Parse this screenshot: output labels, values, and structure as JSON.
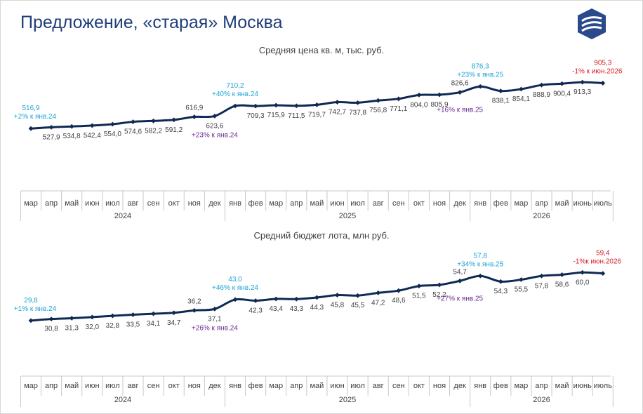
{
  "page": {
    "title": "Предложение, «старая» Москва"
  },
  "colors": {
    "line": "#0f2a52",
    "cyan": "#1ba3d6",
    "purple": "#6a2b8f",
    "red": "#d6202a",
    "axis": "#c8c8c8",
    "text": "#404040"
  },
  "chart_data": [
    {
      "type": "line",
      "title": "Средняя цена кв. м, тыс. руб.",
      "categories": [
        "мар",
        "апр",
        "май",
        "июн",
        "июл",
        "авг",
        "сен",
        "окт",
        "ноя",
        "дек",
        "янв",
        "фев",
        "мар",
        "апр",
        "май",
        "июн",
        "июл",
        "авг",
        "сен",
        "окт",
        "ноя",
        "дек",
        "янв",
        "фев",
        "мар",
        "апр",
        "май",
        "июнь",
        "июль"
      ],
      "years": [
        {
          "label": "2024",
          "from": 0,
          "to": 9
        },
        {
          "label": "2025",
          "from": 10,
          "to": 21
        },
        {
          "label": "2026",
          "from": 22,
          "to": 28
        }
      ],
      "values": [
        516.9,
        527.9,
        534.8,
        542.4,
        554.0,
        574.6,
        582.2,
        591.2,
        616.9,
        623.6,
        710.2,
        709.3,
        715.9,
        711.5,
        719.7,
        742.7,
        737.8,
        756.8,
        771.1,
        804.0,
        805.9,
        826.6,
        876.3,
        838.1,
        854.1,
        888.9,
        900.4,
        913.3,
        905.3
      ],
      "labels": [
        "516,9",
        "527,9",
        "534,8",
        "542,4",
        "554,0",
        "574,6",
        "582,2",
        "591,2",
        "616,9",
        "623,6",
        "710,2",
        "709,3",
        "715,9",
        "711,5",
        "719,7",
        "742,7",
        "737,8",
        "756,8",
        "771,1",
        "804,0",
        "805,9",
        "826,6",
        "876,3",
        "838,1",
        "854,1",
        "888,9",
        "900,4",
        "913,3",
        "905,3"
      ],
      "annotations": [
        {
          "index": 0,
          "text": "+2% к янв.24",
          "color": "cyan"
        },
        {
          "index": 9,
          "text": "+23% к янв.24",
          "color": "purple"
        },
        {
          "index": 10,
          "text": "+40% к янв.24",
          "color": "cyan"
        },
        {
          "index": 21,
          "text": "+16% к янв.25",
          "color": "purple"
        },
        {
          "index": 22,
          "text": "+23% к янв.25",
          "color": "cyan"
        },
        {
          "index": 28,
          "text": "-1% к июн.2026",
          "color": "red"
        }
      ]
    },
    {
      "type": "line",
      "title": "Средний бюджет лота, млн руб.",
      "categories": [
        "мар",
        "апр",
        "май",
        "июн",
        "июл",
        "авг",
        "сен",
        "окт",
        "ноя",
        "дек",
        "янв",
        "фев",
        "мар",
        "апр",
        "май",
        "июн",
        "июл",
        "авг",
        "сен",
        "окт",
        "ноя",
        "дек",
        "янв",
        "фев",
        "мар",
        "апр",
        "май",
        "июнь",
        "июль"
      ],
      "years": [
        {
          "label": "2024",
          "from": 0,
          "to": 9
        },
        {
          "label": "2025",
          "from": 10,
          "to": 21
        },
        {
          "label": "2026",
          "from": 22,
          "to": 28
        }
      ],
      "values": [
        29.8,
        30.8,
        31.3,
        32.0,
        32.8,
        33.5,
        34.1,
        34.7,
        36.2,
        37.1,
        43.0,
        42.3,
        43.4,
        43.3,
        44.3,
        45.8,
        45.5,
        47.2,
        48.6,
        51.5,
        52.2,
        54.7,
        57.8,
        54.3,
        55.5,
        57.8,
        58.6,
        60.0,
        59.4
      ],
      "labels": [
        "29,8",
        "30,8",
        "31,3",
        "32,0",
        "32,8",
        "33,5",
        "34,1",
        "34,7",
        "36,2",
        "37,1",
        "43,0",
        "42,3",
        "43,4",
        "43,3",
        "44,3",
        "45,8",
        "45,5",
        "47,2",
        "48,6",
        "51,5",
        "52,2",
        "54,7",
        "57,8",
        "54,3",
        "55,5",
        "57,8",
        "58,6",
        "60,0",
        "59,4"
      ],
      "annotations": [
        {
          "index": 0,
          "text": "+1% к янв.24",
          "color": "cyan"
        },
        {
          "index": 9,
          "text": "+26% к янв.24",
          "color": "purple"
        },
        {
          "index": 10,
          "text": "+46% к янв.24",
          "color": "cyan"
        },
        {
          "index": 21,
          "text": "+27% к янв.25",
          "color": "purple"
        },
        {
          "index": 22,
          "text": "+34% к янв.25",
          "color": "cyan"
        },
        {
          "index": 28,
          "text": "-1%к июн.2026",
          "color": "red"
        }
      ]
    }
  ]
}
